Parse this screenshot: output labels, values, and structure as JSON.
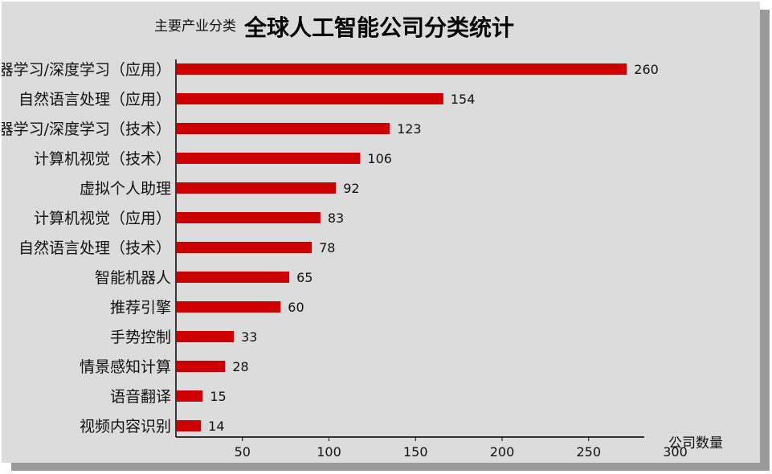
{
  "chart_data": {
    "type": "bar",
    "orientation": "horizontal",
    "title": "全球人工智能公司分类统计",
    "ylabel": "主要产业分类",
    "xlabel": "公司数量",
    "categories": [
      "机器学习/深度学习（应用）",
      "自然语言处理（应用）",
      "机器学习/深度学习（技术）",
      "计算机视觉（技术）",
      "虚拟个人助理",
      "计算机视觉（应用）",
      "自然语言处理（技术）",
      "智能机器人",
      "推荐引擎",
      "手势控制",
      "情景感知计算",
      "语音翻译",
      "视频内容识别"
    ],
    "values": [
      260,
      154,
      123,
      106,
      92,
      83,
      78,
      65,
      60,
      33,
      28,
      15,
      14
    ],
    "xticks": [
      50,
      100,
      150,
      200,
      250,
      300
    ],
    "xlim": [
      0,
      300
    ],
    "grid": false,
    "bar_color": "#cc0000",
    "background_color": "#dcdcdc"
  }
}
